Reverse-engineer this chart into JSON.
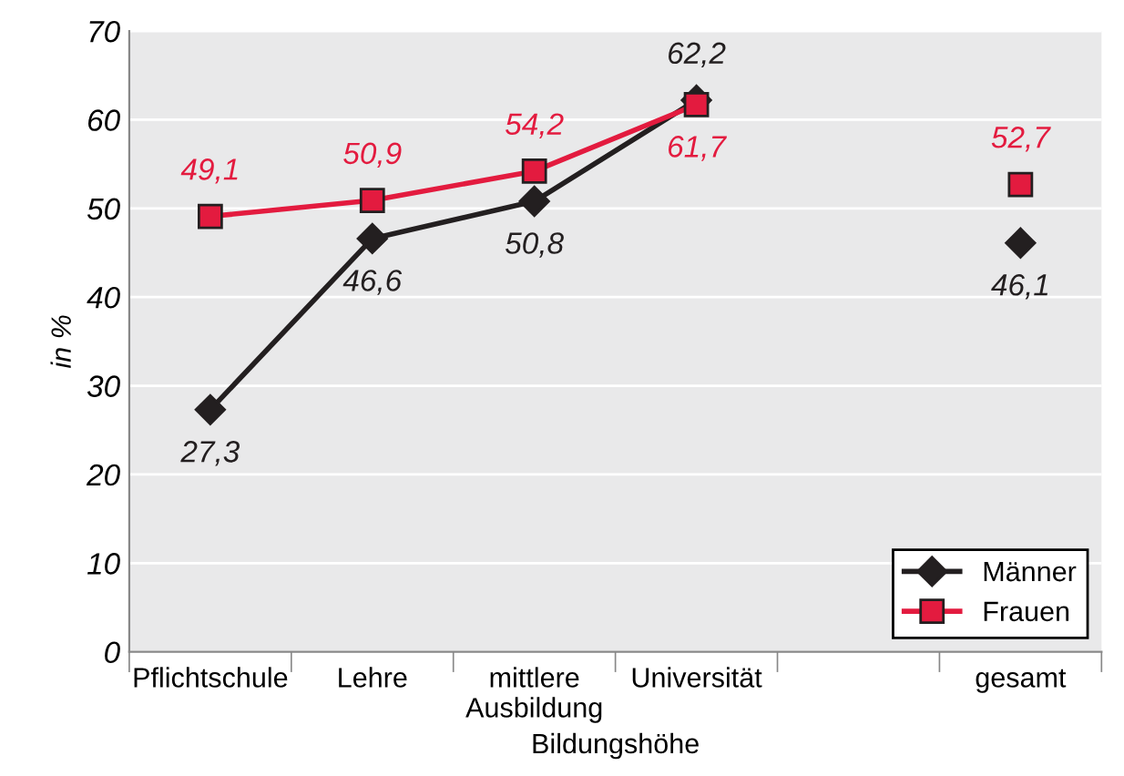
{
  "chart_data": {
    "type": "line",
    "xlabel": "Bildungshöhe",
    "ylabel": "in %",
    "categories": [
      "Pflichtschule",
      "Lehre",
      "mittlere\nAusbildung",
      "Universität",
      null,
      "gesamt"
    ],
    "series": [
      {
        "name": "Männer",
        "color": "#231f20",
        "marker": "diamond",
        "values": [
          27.3,
          46.6,
          50.8,
          62.2,
          null,
          46.1
        ],
        "value_labels": [
          "27,3",
          "46,6",
          "50,8",
          "62,2",
          null,
          "46,1"
        ]
      },
      {
        "name": "Frauen",
        "color": "#e31b3f",
        "marker": "square",
        "values": [
          49.1,
          50.9,
          54.2,
          61.7,
          null,
          52.7
        ],
        "value_labels": [
          "49,1",
          "50,9",
          "54,2",
          "61,7",
          null,
          "52,7"
        ]
      }
    ],
    "ylim": [
      0,
      70
    ],
    "yticks": [
      0,
      10,
      20,
      30,
      40,
      50,
      60,
      70
    ],
    "grid": "y",
    "legend": "bottom right",
    "line_style": "solid"
  }
}
